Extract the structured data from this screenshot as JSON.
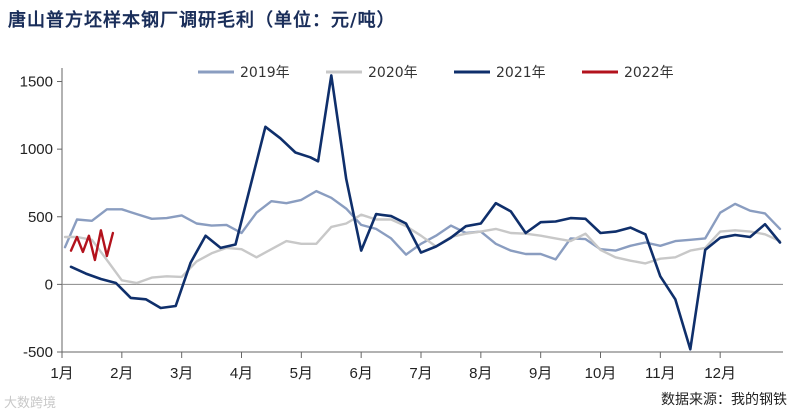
{
  "title": "唐山普方坯样本钢厂调研毛利（单位：元/吨）",
  "source": "数据来源：我的钢铁",
  "watermark": "大数跨境",
  "chart_data": {
    "type": "line",
    "xlabel": "",
    "ylabel": "",
    "ylim": [
      -500,
      1600
    ],
    "yticks": [
      -500,
      0,
      500,
      1000,
      1500
    ],
    "xlim": [
      1,
      13.05
    ],
    "xtick_positions": [
      1,
      2,
      3,
      4,
      5,
      6,
      7,
      8,
      9,
      10,
      11,
      12
    ],
    "xtick_labels": [
      "1月",
      "2月",
      "3月",
      "4月",
      "5月",
      "6月",
      "7月",
      "8月",
      "9月",
      "10月",
      "11月",
      "12月"
    ],
    "legend_position": "top",
    "series": [
      {
        "name": "2019年",
        "color": "#8a9dc0",
        "x": [
          1.05,
          1.25,
          1.5,
          1.75,
          2.0,
          2.25,
          2.5,
          2.75,
          3.0,
          3.25,
          3.5,
          3.75,
          4.0,
          4.25,
          4.5,
          4.75,
          5.0,
          5.25,
          5.5,
          5.75,
          6.0,
          6.25,
          6.5,
          6.75,
          7.0,
          7.25,
          7.5,
          7.75,
          8.0,
          8.25,
          8.5,
          8.75,
          9.0,
          9.25,
          9.5,
          9.75,
          10.0,
          10.25,
          10.5,
          10.75,
          11.0,
          11.25,
          11.5,
          11.75,
          12.0,
          12.25,
          12.5,
          12.75,
          13.0
        ],
        "y": [
          275,
          480,
          470,
          555,
          555,
          520,
          485,
          490,
          510,
          450,
          435,
          440,
          380,
          530,
          615,
          600,
          625,
          690,
          640,
          560,
          440,
          410,
          340,
          220,
          300,
          360,
          435,
          380,
          390,
          300,
          250,
          225,
          225,
          185,
          340,
          335,
          260,
          250,
          285,
          310,
          285,
          320,
          330,
          340,
          530,
          595,
          545,
          525,
          410
        ]
      },
      {
        "name": "2020年",
        "color": "#c8c8c8",
        "x": [
          1.05,
          1.25,
          1.5,
          1.75,
          2.0,
          2.25,
          2.5,
          2.75,
          3.0,
          3.25,
          3.5,
          3.75,
          4.0,
          4.25,
          4.5,
          4.75,
          5.0,
          5.25,
          5.5,
          5.75,
          6.0,
          6.25,
          6.5,
          6.75,
          7.0,
          7.25,
          7.5,
          7.75,
          8.0,
          8.25,
          8.5,
          8.75,
          9.0,
          9.25,
          9.5,
          9.75,
          10.0,
          10.25,
          10.5,
          10.75,
          11.0,
          11.25,
          11.5,
          11.75,
          12.0,
          12.25,
          12.5,
          12.75,
          13.0
        ],
        "y": [
          350,
          350,
          330,
          180,
          30,
          10,
          50,
          60,
          55,
          170,
          230,
          270,
          260,
          200,
          260,
          320,
          300,
          300,
          425,
          450,
          515,
          480,
          480,
          430,
          360,
          280,
          350,
          375,
          390,
          410,
          380,
          375,
          360,
          340,
          320,
          375,
          255,
          200,
          175,
          155,
          190,
          200,
          250,
          270,
          390,
          400,
          390,
          370,
          320
        ]
      },
      {
        "name": "2021年",
        "color": "#0f2f6b",
        "x": [
          1.15,
          1.4,
          1.65,
          1.9,
          2.15,
          2.4,
          2.65,
          2.9,
          3.15,
          3.4,
          3.65,
          3.9,
          4.15,
          4.4,
          4.65,
          4.9,
          5.15,
          5.28,
          5.5,
          5.75,
          6.0,
          6.25,
          6.5,
          6.75,
          7.0,
          7.25,
          7.5,
          7.75,
          8.0,
          8.25,
          8.5,
          8.75,
          9.0,
          9.25,
          9.5,
          9.75,
          10.0,
          10.25,
          10.5,
          10.75,
          11.0,
          11.25,
          11.5,
          11.75,
          12.0,
          12.25,
          12.5,
          12.75,
          13.0
        ],
        "y": [
          130,
          80,
          40,
          10,
          -100,
          -110,
          -175,
          -160,
          160,
          360,
          270,
          295,
          730,
          1165,
          1080,
          975,
          940,
          910,
          1545,
          780,
          250,
          520,
          505,
          450,
          235,
          280,
          345,
          430,
          450,
          600,
          540,
          380,
          460,
          465,
          490,
          485,
          380,
          390,
          420,
          370,
          60,
          -110,
          -480,
          255,
          345,
          365,
          350,
          445,
          310
        ]
      },
      {
        "name": "2022年",
        "color": "#b3121c",
        "x": [
          1.15,
          1.25,
          1.35,
          1.45,
          1.55,
          1.65,
          1.75,
          1.85
        ],
        "y": [
          250,
          350,
          240,
          360,
          180,
          400,
          210,
          380
        ]
      }
    ]
  }
}
